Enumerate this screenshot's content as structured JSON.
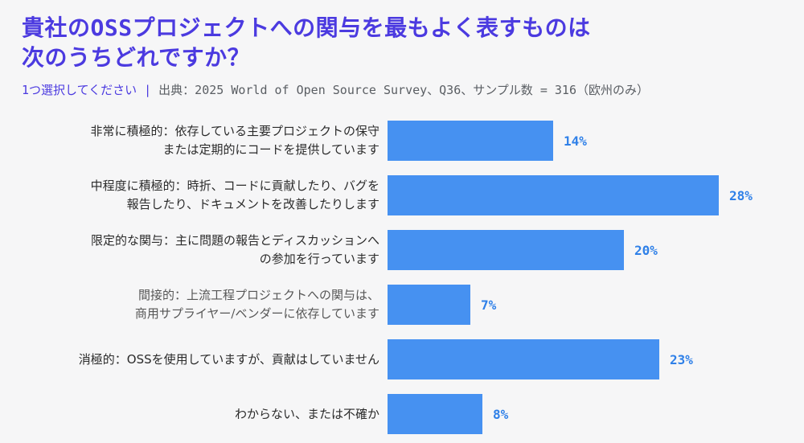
{
  "page": {
    "background_color": "#F6F6F7",
    "accent_color": "#4B3AE0",
    "bar_color": "#4691F1",
    "value_label_color": "#2F80E8"
  },
  "header": {
    "title_line1": "貴社のOSSプロジェクトへの関与を最もよく表すものは",
    "title_line2": "次のうちどれですか？",
    "instruction": "1つ選択してください",
    "separator": "|",
    "source": "出典：2025 World of Open Source Survey、Q36、サンプル数 = 316（欧州のみ）"
  },
  "chart_data": {
    "type": "bar",
    "orientation": "horizontal",
    "title": "貴社のOSSプロジェクトへの関与を最もよく表すものは次のうちどれですか？",
    "subtitle": "1つ選択してください | 出典：2025 World of Open Source Survey、Q36、サンプル数 = 316（欧州のみ）",
    "categories": [
      "非常に積極的：依存している主要プロジェクトの保守または定期的にコードを提供しています",
      "中程度に積極的：時折、コードに貢献したり、バグを報告したり、ドキュメントを改善したりします",
      "限定的な関与：主に問題の報告とディスカッションへの参加を行っています",
      "間接的：上流工程プロジェクトへの関与は、商用サプライヤー/ベンダーに依存しています",
      "消極的：OSSを使用していますが、貢献はしていません",
      "わからない、または不確か"
    ],
    "values": [
      14,
      28,
      20,
      7,
      23,
      8
    ],
    "value_labels": [
      "14%",
      "28%",
      "20%",
      "7%",
      "23%",
      "8%"
    ],
    "xlim": [
      0,
      30
    ],
    "grid": false,
    "legend": false,
    "rows": [
      {
        "label_lines": [
          "非常に積極的：依存している主要プロジェクトの保守",
          "または定期的にコードを提供しています"
        ],
        "value": 14,
        "value_label": "14%"
      },
      {
        "label_lines": [
          "中程度に積極的：時折、コードに貢献したり、バグを",
          "報告したり、ドキュメントを改善したりします"
        ],
        "value": 28,
        "value_label": "28%"
      },
      {
        "label_lines": [
          "限定的な関与：主に問題の報告とディスカッションへ",
          "の参加を行っています"
        ],
        "value": 20,
        "value_label": "20%"
      },
      {
        "label_lines": [
          "間接的：上流工程プロジェクトへの関与は、",
          "商用サプライヤー/ベンダーに依存しています"
        ],
        "value": 7,
        "value_label": "7%"
      },
      {
        "label_lines": [
          "消極的：OSSを使用していますが、貢献はしていません"
        ],
        "value": 23,
        "value_label": "23%"
      },
      {
        "label_lines": [
          "わからない、または不確か"
        ],
        "value": 8,
        "value_label": "8%"
      }
    ]
  }
}
